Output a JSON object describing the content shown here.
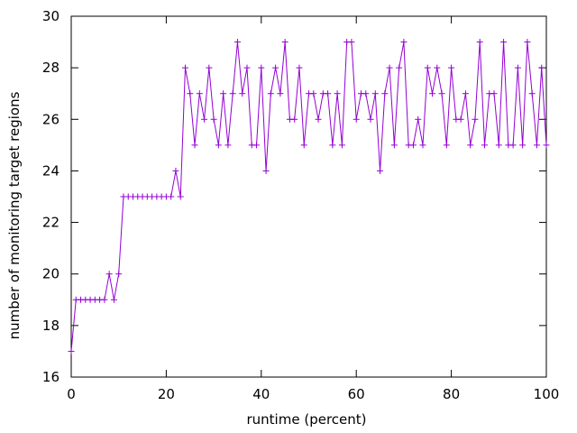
{
  "chart_data": {
    "type": "line",
    "xlabel": "runtime (percent)",
    "ylabel": "number of monitoring target regions",
    "xlim": [
      0,
      100
    ],
    "ylim": [
      16,
      30
    ],
    "xticks": [
      0,
      20,
      40,
      60,
      80,
      100
    ],
    "yticks": [
      16,
      18,
      20,
      22,
      24,
      26,
      28,
      30
    ],
    "grid": false,
    "legend": "none",
    "colors": {
      "series": "#9400d3",
      "axis": "#000000"
    },
    "marker": "plus",
    "series": [
      {
        "x": [
          0,
          1,
          2,
          3,
          4,
          5,
          6,
          7,
          8,
          9,
          10,
          11,
          12,
          13,
          14,
          15,
          16,
          17,
          18,
          19,
          20,
          21,
          22,
          23,
          24,
          25,
          26,
          27,
          28,
          29,
          30,
          31,
          32,
          33,
          34,
          35,
          36,
          37,
          38,
          39,
          40,
          41,
          42,
          43,
          44,
          45,
          46,
          47,
          48,
          49,
          50,
          51,
          52,
          53,
          54,
          55,
          56,
          57,
          58,
          59,
          60,
          61,
          62,
          63,
          64,
          65,
          66,
          67,
          68,
          69,
          70,
          71,
          72,
          73,
          74,
          75,
          76,
          77,
          78,
          79,
          80,
          81,
          82,
          83,
          84,
          85,
          86,
          87,
          88,
          89,
          90,
          91,
          92,
          93,
          94,
          95,
          96,
          97,
          98,
          99,
          100
        ],
        "values": [
          17,
          19,
          19,
          19,
          19,
          19,
          19,
          19,
          20,
          19,
          20,
          23,
          23,
          23,
          23,
          23,
          23,
          23,
          23,
          23,
          23,
          23,
          24,
          23,
          28,
          27,
          25,
          27,
          26,
          28,
          26,
          25,
          27,
          25,
          27,
          29,
          27,
          28,
          25,
          25,
          28,
          24,
          27,
          28,
          27,
          29,
          26,
          26,
          28,
          25,
          27,
          27,
          26,
          27,
          27,
          25,
          27,
          25,
          29,
          29,
          26,
          27,
          27,
          26,
          27,
          24,
          27,
          28,
          25,
          28,
          29,
          25,
          25,
          26,
          25,
          28,
          27,
          28,
          27,
          25,
          28,
          26,
          26,
          27,
          25,
          26,
          29,
          25,
          27,
          27,
          25,
          29,
          25,
          25,
          28,
          25,
          29,
          27,
          25,
          28,
          25
        ]
      }
    ]
  }
}
